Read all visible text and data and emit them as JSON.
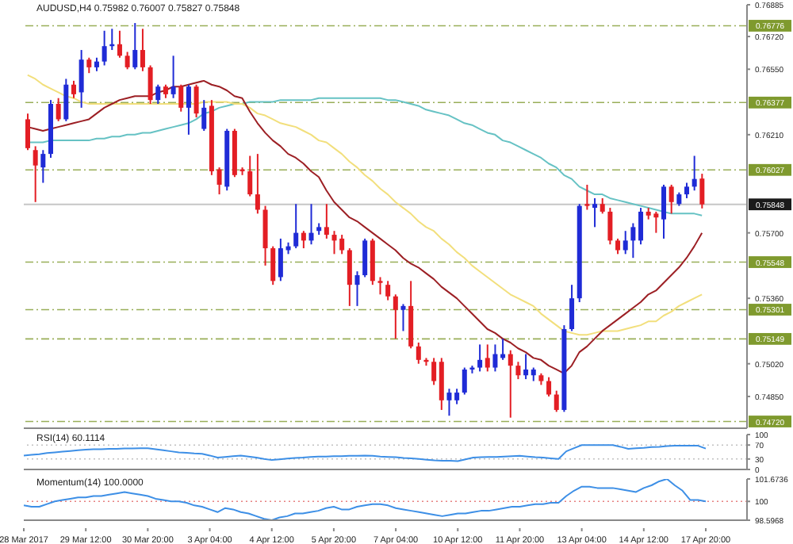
{
  "chart_data": [
    {
      "type": "candlestick",
      "title": "AUDUSD,H4 0.75982 0.76007 0.75827 0.75848",
      "tick_labels": "y",
      "categories": [
        null,
        null,
        null,
        null,
        null,
        null,
        null,
        null,
        null,
        null,
        null,
        null,
        null,
        null,
        null,
        null,
        null,
        null,
        null,
        null,
        null,
        null,
        null,
        null,
        null,
        null,
        null,
        null,
        null,
        null,
        null,
        null,
        null,
        null,
        null,
        null,
        null,
        null,
        null,
        null,
        null,
        null,
        null,
        null,
        null,
        null,
        null,
        null,
        null,
        null,
        null,
        null,
        null,
        null,
        null,
        null,
        null,
        null,
        null,
        null,
        null,
        null,
        null,
        null,
        null,
        null,
        null,
        null,
        null,
        null,
        null,
        null,
        null,
        null,
        null,
        null,
        null,
        null,
        null,
        null,
        null,
        null,
        null,
        null,
        null,
        null,
        null,
        null,
        null
      ],
      "ohlc": [
        [
          0.7629,
          0.7632,
          0.7613,
          0.7614
        ],
        [
          0.7613,
          0.7615,
          0.7586,
          0.7605
        ],
        [
          0.7604,
          0.7613,
          0.7596,
          0.7611
        ],
        [
          0.7611,
          0.7639,
          0.7609,
          0.7637
        ],
        [
          0.7637,
          0.764,
          0.7628,
          0.7629
        ],
        [
          0.7629,
          0.765,
          0.7628,
          0.7647
        ],
        [
          0.7647,
          0.7649,
          0.764,
          0.7642
        ],
        [
          0.7643,
          0.7665,
          0.7635,
          0.766
        ],
        [
          0.766,
          0.7661,
          0.7653,
          0.7656
        ],
        [
          0.7656,
          0.7661,
          0.7654,
          0.7659
        ],
        [
          0.7659,
          0.7675,
          0.7657,
          0.7667
        ],
        [
          0.7667,
          0.7676,
          0.7665,
          0.7668
        ],
        [
          0.7668,
          0.7675,
          0.7661,
          0.7662
        ],
        [
          0.7662,
          0.7664,
          0.7655,
          0.7656
        ],
        [
          0.7656,
          0.7679,
          0.7655,
          0.7665
        ],
        [
          0.7665,
          0.7676,
          0.7654,
          0.7656
        ],
        [
          0.7656,
          0.7657,
          0.7637,
          0.7639
        ],
        [
          0.7639,
          0.7647,
          0.7637,
          0.7646
        ],
        [
          0.7646,
          0.7647,
          0.764,
          0.7642
        ],
        [
          0.7642,
          0.7662,
          0.764,
          0.7646
        ],
        [
          0.7646,
          0.7647,
          0.7633,
          0.7635
        ],
        [
          0.7635,
          0.7647,
          0.7621,
          0.7646
        ],
        [
          0.7646,
          0.7647,
          0.763,
          0.7632
        ],
        [
          0.7624,
          0.7639,
          0.7623,
          0.7635
        ],
        [
          0.7636,
          0.7639,
          0.76,
          0.7602
        ],
        [
          0.7603,
          0.7604,
          0.759,
          0.7595
        ],
        [
          0.7594,
          0.7624,
          0.7592,
          0.7623
        ],
        [
          0.7623,
          0.7624,
          0.7599,
          0.76
        ],
        [
          0.7603,
          0.7604,
          0.76,
          0.7602
        ],
        [
          0.7602,
          0.761,
          0.7589,
          0.759
        ],
        [
          0.759,
          0.7611,
          0.758,
          0.7582
        ],
        [
          0.7582,
          0.7584,
          0.7553,
          0.7562
        ],
        [
          0.7562,
          0.7563,
          0.7543,
          0.7545
        ],
        [
          0.7547,
          0.7567,
          0.7545,
          0.7562
        ],
        [
          0.7561,
          0.7565,
          0.7559,
          0.7563
        ],
        [
          0.7563,
          0.7585,
          0.7562,
          0.757
        ],
        [
          0.757,
          0.7571,
          0.7562,
          0.7566
        ],
        [
          0.7566,
          0.7585,
          0.7564,
          0.757
        ],
        [
          0.7571,
          0.7575,
          0.7569,
          0.7573
        ],
        [
          0.7573,
          0.7585,
          0.7567,
          0.7569
        ],
        [
          0.7569,
          0.7571,
          0.7559,
          0.7566
        ],
        [
          0.7567,
          0.7569,
          0.7559,
          0.7561
        ],
        [
          0.7561,
          0.7562,
          0.7532,
          0.7543
        ],
        [
          0.7543,
          0.755,
          0.7532,
          0.7548
        ],
        [
          0.7548,
          0.7567,
          0.7547,
          0.7566
        ],
        [
          0.7566,
          0.7567,
          0.7543,
          0.7545
        ],
        [
          0.7545,
          0.7547,
          0.7538,
          0.7544
        ],
        [
          0.7543,
          0.7545,
          0.7535,
          0.7537
        ],
        [
          0.7537,
          0.7538,
          0.7515,
          0.753
        ],
        [
          0.753,
          0.7533,
          0.7519,
          0.7532
        ],
        [
          0.7532,
          0.7545,
          0.751,
          0.7511
        ],
        [
          0.7511,
          0.7513,
          0.7502,
          0.7504
        ],
        [
          0.7504,
          0.7505,
          0.7501,
          0.7503
        ],
        [
          0.7503,
          0.7505,
          0.7491,
          0.7493
        ],
        [
          0.7503,
          0.7505,
          0.7478,
          0.7483
        ],
        [
          0.7483,
          0.7489,
          0.7475,
          0.7487
        ],
        [
          0.7483,
          0.7489,
          0.7481,
          0.7487
        ],
        [
          0.7487,
          0.75,
          0.7486,
          0.7499
        ],
        [
          0.7499,
          0.7501,
          0.7497,
          0.75
        ],
        [
          0.75,
          0.7512,
          0.7498,
          0.7504
        ],
        [
          0.7505,
          0.7512,
          0.7498,
          0.75
        ],
        [
          0.75,
          0.7512,
          0.7498,
          0.7507
        ],
        [
          0.7505,
          0.7515,
          0.7504,
          0.7507
        ],
        [
          0.7507,
          0.7509,
          0.7474,
          0.7501
        ],
        [
          0.7501,
          0.7503,
          0.7494,
          0.7496
        ],
        [
          0.7496,
          0.7507,
          0.7494,
          0.7499
        ],
        [
          0.7496,
          0.75,
          0.7493,
          0.7499
        ],
        [
          0.7496,
          0.7497,
          0.7491,
          0.7493
        ],
        [
          0.7493,
          0.7495,
          0.7485,
          0.7486
        ],
        [
          0.7486,
          0.7488,
          0.7477,
          0.7478
        ],
        [
          0.7478,
          0.7522,
          0.7477,
          0.752
        ],
        [
          0.752,
          0.7543,
          0.7519,
          0.7536
        ],
        [
          0.7536,
          0.7585,
          0.7534,
          0.7584
        ],
        [
          0.7585,
          0.7595,
          0.7582,
          0.7584
        ],
        [
          0.7583,
          0.7588,
          0.7573,
          0.7585
        ],
        [
          0.7585,
          0.7588,
          0.758,
          0.7581
        ],
        [
          0.7581,
          0.7583,
          0.7564,
          0.7566
        ],
        [
          0.7566,
          0.7567,
          0.7559,
          0.7561
        ],
        [
          0.7561,
          0.7571,
          0.7559,
          0.7566
        ],
        [
          0.7566,
          0.7575,
          0.7557,
          0.7573
        ],
        [
          0.7566,
          0.7583,
          0.7564,
          0.7581
        ],
        [
          0.7581,
          0.7583,
          0.7577,
          0.7579
        ],
        [
          0.758,
          0.7581,
          0.757,
          0.7578
        ],
        [
          0.7577,
          0.7595,
          0.7567,
          0.7594
        ],
        [
          0.7594,
          0.7595,
          0.758,
          0.7586
        ],
        [
          0.7585,
          0.7591,
          0.7584,
          0.759
        ],
        [
          0.759,
          0.7596,
          0.7588,
          0.7594
        ],
        [
          0.7594,
          0.761,
          0.7592,
          0.7598
        ],
        [
          0.75982,
          0.76007,
          0.75827,
          0.75848
        ]
      ],
      "colors": [
        "#e31e24",
        "#e31e24",
        "#1f2bd6",
        "#1f2bd6",
        "#e31e24",
        "#1f2bd6",
        "#e31e24",
        "#1f2bd6",
        "#e31e24",
        "#1f2bd6",
        "#1f2bd6",
        "#1f2bd6",
        "#e31e24",
        "#e31e24",
        "#1f2bd6",
        "#e31e24",
        "#e31e24",
        "#1f2bd6",
        "#e31e24",
        "#1f2bd6",
        "#e31e24",
        "#1f2bd6",
        "#e31e24",
        "#1f2bd6",
        "#e31e24",
        "#e31e24",
        "#1f2bd6",
        "#e31e24",
        "#e31e24",
        "#e31e24",
        "#e31e24",
        "#e31e24",
        "#e31e24",
        "#1f2bd6",
        "#1f2bd6",
        "#1f2bd6",
        "#e31e24",
        "#1f2bd6",
        "#1f2bd6",
        "#e31e24",
        "#e31e24",
        "#e31e24",
        "#e31e24",
        "#1f2bd6",
        "#1f2bd6",
        "#e31e24",
        "#e31e24",
        "#e31e24",
        "#e31e24",
        "#1f2bd6",
        "#e31e24",
        "#e31e24",
        "#e31e24",
        "#e31e24",
        "#e31e24",
        "#1f2bd6",
        "#1f2bd6",
        "#1f2bd6",
        "#1f2bd6",
        "#1f2bd6",
        "#e31e24",
        "#1f2bd6",
        "#1f2bd6",
        "#e31e24",
        "#e31e24",
        "#1f2bd6",
        "#1f2bd6",
        "#e31e24",
        "#e31e24",
        "#e31e24",
        "#1f2bd6",
        "#1f2bd6",
        "#1f2bd6",
        "#e31e24",
        "#1f2bd6",
        "#e31e24",
        "#e31e24",
        "#e31e24",
        "#1f2bd6",
        "#1f2bd6",
        "#1f2bd6",
        "#e31e24",
        "#e31e24",
        "#1f2bd6",
        "#e31e24",
        "#1f2bd6",
        "#1f2bd6",
        "#1f2bd6",
        "#e31e24"
      ],
      "series": [
        {
          "type": "line",
          "color": "#66c2c4",
          "values": [
            0.7617,
            0.7617,
            0.7617,
            0.7618,
            0.7618,
            0.7618,
            0.7618,
            0.7618,
            0.7618,
            0.7619,
            0.7619,
            0.762,
            0.762,
            0.7621,
            0.7621,
            0.7622,
            0.7622,
            0.7623,
            0.7624,
            0.7625,
            0.7626,
            0.7627,
            0.7629,
            0.7632,
            0.7633,
            0.7635,
            0.7636,
            0.7637,
            0.7637,
            0.7638,
            0.7638,
            0.7638,
            0.7638,
            0.7639,
            0.7639,
            0.7639,
            0.7639,
            0.7639,
            0.764,
            0.764,
            0.764,
            0.764,
            0.764,
            0.764,
            0.764,
            0.764,
            0.764,
            0.7639,
            0.7639,
            0.7638,
            0.7637,
            0.7636,
            0.7634,
            0.7633,
            0.7632,
            0.7631,
            0.7629,
            0.7627,
            0.7626,
            0.7624,
            0.7622,
            0.7621,
            0.7618,
            0.7617,
            0.7615,
            0.7613,
            0.7611,
            0.7609,
            0.7606,
            0.7604,
            0.76,
            0.7598,
            0.7594,
            0.7592,
            0.759,
            0.759,
            0.7588,
            0.7587,
            0.7586,
            0.7585,
            0.7584,
            0.7583,
            0.7582,
            0.7581,
            0.758,
            0.758,
            0.758,
            0.758,
            0.7579
          ]
        },
        {
          "type": "line",
          "color": "#f2df7c",
          "values": [
            0.7652,
            0.765,
            0.7647,
            0.7645,
            0.7643,
            0.7641,
            0.764,
            0.7638,
            0.7637,
            0.7637,
            0.7637,
            0.7637,
            0.7637,
            0.7637,
            0.7637,
            0.7637,
            0.7637,
            0.7637,
            0.7637,
            0.7637,
            0.7637,
            0.7637,
            0.7637,
            0.7638,
            0.7638,
            0.7638,
            0.7638,
            0.7637,
            0.7637,
            0.7635,
            0.7632,
            0.7631,
            0.7629,
            0.7627,
            0.7626,
            0.7625,
            0.7623,
            0.7621,
            0.7618,
            0.7617,
            0.7614,
            0.7611,
            0.7607,
            0.7604,
            0.76,
            0.7597,
            0.7593,
            0.759,
            0.7586,
            0.7583,
            0.758,
            0.7576,
            0.7573,
            0.7571,
            0.7567,
            0.7564,
            0.756,
            0.7557,
            0.7553,
            0.755,
            0.7547,
            0.7544,
            0.7541,
            0.7538,
            0.7536,
            0.7534,
            0.7532,
            0.7528,
            0.7525,
            0.7522,
            0.7519,
            0.7518,
            0.7517,
            0.7517,
            0.7518,
            0.7519,
            0.7519,
            0.7519,
            0.752,
            0.7521,
            0.7522,
            0.7524,
            0.7524,
            0.7527,
            0.7529,
            0.7532,
            0.7534,
            0.7536,
            0.7538
          ]
        },
        {
          "type": "line",
          "color": "#9c1f24",
          "values": [
            0.7625,
            0.7624,
            0.7623,
            0.7624,
            0.7625,
            0.7626,
            0.7627,
            0.7628,
            0.7629,
            0.7632,
            0.7635,
            0.7637,
            0.7639,
            0.764,
            0.7641,
            0.7641,
            0.7641,
            0.7643,
            0.7644,
            0.7646,
            0.7646,
            0.7647,
            0.7648,
            0.7649,
            0.7647,
            0.7646,
            0.7644,
            0.7641,
            0.764,
            0.7633,
            0.7627,
            0.7622,
            0.7618,
            0.7615,
            0.7611,
            0.7609,
            0.7606,
            0.7602,
            0.7599,
            0.7592,
            0.7586,
            0.7582,
            0.7578,
            0.7576,
            0.7573,
            0.757,
            0.7567,
            0.7564,
            0.7561,
            0.7557,
            0.7554,
            0.7552,
            0.7549,
            0.7546,
            0.7542,
            0.7539,
            0.7536,
            0.7532,
            0.7528,
            0.7524,
            0.752,
            0.7518,
            0.7515,
            0.7513,
            0.751,
            0.7508,
            0.7505,
            0.7504,
            0.7501,
            0.7499,
            0.7497,
            0.7501,
            0.7508,
            0.7511,
            0.7515,
            0.7519,
            0.7522,
            0.7525,
            0.7528,
            0.7531,
            0.7534,
            0.7538,
            0.754,
            0.7544,
            0.7548,
            0.7552,
            0.7557,
            0.7563,
            0.757
          ]
        }
      ],
      "ylim": [
        0.74685,
        0.76885
      ],
      "yticks": [
        0.76885,
        {
          "value": 0.7672,
          "label": "0.76720"
        },
        {
          "value": 0.7655,
          "label": "0.76550"
        },
        {
          "value": 0.7621,
          "label": "0.76210"
        },
        {
          "value": 0.757,
          "label": "0.75700"
        },
        {
          "value": 0.7536,
          "label": "0.75360"
        },
        {
          "value": 0.7502,
          "label": "0.75020"
        },
        {
          "value": 0.7485,
          "label": "0.74850"
        }
      ],
      "ref_lines": [
        {
          "axis": "y",
          "value": 0.76776,
          "label": "0.76776",
          "color": "#7f9a2e",
          "line_style": "dashed"
        },
        {
          "axis": "y",
          "value": 0.76377,
          "label": "0.76377",
          "color": "#7f9a2e",
          "line_style": "dashed"
        },
        {
          "axis": "y",
          "value": 0.76027,
          "label": "0.76027",
          "color": "#7f9a2e",
          "line_style": "dashed"
        },
        {
          "axis": "y",
          "value": 0.75848,
          "label": "0.75848",
          "color": "#1a1a1a",
          "line_style": "solid"
        },
        {
          "axis": "y",
          "value": 0.75548,
          "label": "0.75548",
          "color": "#7f9a2e",
          "line_style": "dashed"
        },
        {
          "axis": "y",
          "value": 0.75301,
          "label": "0.75301",
          "color": "#7f9a2e",
          "line_style": "dashed"
        },
        {
          "axis": "y",
          "value": 0.75149,
          "label": "0.75149",
          "color": "#7f9a2e",
          "line_style": "dashed"
        },
        {
          "axis": "y",
          "value": 0.7472,
          "label": "0.74720",
          "color": "#7f9a2e",
          "line_style": "dashed"
        }
      ]
    },
    {
      "type": "line",
      "title": "RSI(14) 60.1114",
      "tick_labels": "y",
      "categories": [
        null,
        null,
        null,
        null,
        null,
        null,
        null,
        null,
        null,
        null,
        null,
        null,
        null,
        null,
        null,
        null,
        null,
        null,
        null,
        null,
        null,
        null,
        null,
        null,
        null,
        null,
        null,
        null,
        null,
        null,
        null,
        null,
        null,
        null,
        null,
        null,
        null,
        null,
        null,
        null,
        null,
        null,
        null,
        null,
        null,
        null,
        null,
        null,
        null,
        null,
        null,
        null,
        null,
        null,
        null,
        null,
        null,
        null,
        null,
        null,
        null,
        null,
        null,
        null,
        null,
        null,
        null,
        null,
        null,
        null,
        null,
        null,
        null,
        null,
        null,
        null,
        null,
        null,
        null,
        null,
        null,
        null,
        null,
        null,
        null,
        null,
        null,
        null,
        null
      ],
      "series": [
        {
          "color": "#3d8fe6",
          "values": [
            40,
            42,
            44,
            47,
            49,
            51,
            53,
            55,
            57,
            58,
            58,
            59,
            59,
            60,
            60,
            61,
            61,
            58,
            55,
            52,
            49,
            48,
            46,
            45,
            40,
            34,
            36,
            38,
            40,
            37,
            34,
            30,
            27,
            29,
            31,
            33,
            34,
            36,
            37,
            37,
            38,
            38,
            39,
            39,
            40,
            39,
            37,
            36,
            35,
            33,
            32,
            30,
            28,
            26,
            25,
            25,
            24,
            29,
            34,
            35,
            36,
            36,
            37,
            38,
            39,
            37,
            35,
            34,
            32,
            30,
            52,
            61,
            70,
            70,
            70,
            70,
            70,
            65,
            59,
            61,
            62,
            64,
            65,
            67,
            68,
            68,
            68,
            68,
            60
          ]
        }
      ],
      "ylim": [
        0,
        100
      ],
      "yticks": [
        100,
        70,
        30,
        0
      ],
      "ref_lines": [
        {
          "axis": "y",
          "value": 70,
          "color": "#b0b0b0",
          "line_style": "dotted"
        },
        {
          "axis": "y",
          "value": 30,
          "color": "#b0b0b0",
          "line_style": "dotted"
        }
      ]
    },
    {
      "type": "line",
      "title": "Momentum(14) 100.0000",
      "categories": [
        "28 Mar 2017",
        null,
        null,
        null,
        null,
        null,
        null,
        null,
        "29 Mar 12:00",
        null,
        null,
        null,
        null,
        null,
        null,
        null,
        "30 Mar 20:00",
        null,
        null,
        null,
        null,
        null,
        null,
        null,
        "3 Apr 04:00",
        null,
        null,
        null,
        null,
        null,
        null,
        null,
        "4 Apr 12:00",
        null,
        null,
        null,
        null,
        null,
        null,
        null,
        "5 Apr 20:00",
        null,
        null,
        null,
        null,
        null,
        null,
        null,
        "7 Apr 04:00",
        null,
        null,
        null,
        null,
        null,
        null,
        null,
        "10 Apr 12:00",
        null,
        null,
        null,
        null,
        null,
        null,
        null,
        "11 Apr 20:00",
        null,
        null,
        null,
        null,
        null,
        null,
        null,
        "13 Apr 04:00",
        null,
        null,
        null,
        null,
        null,
        null,
        null,
        "14 Apr 12:00",
        null,
        null,
        null,
        null,
        null,
        null,
        null,
        "17 Apr 20:00"
      ],
      "series": [
        {
          "color": "#3d8fe6",
          "values": [
            99.7,
            99.6,
            99.6,
            99.8,
            100,
            100.1,
            100.2,
            100.3,
            100.3,
            100.4,
            100.4,
            100.5,
            100.6,
            100.7,
            100.6,
            100.5,
            100.4,
            100.2,
            100.1,
            100,
            100,
            99.9,
            99.7,
            99.6,
            99.4,
            99.2,
            99.5,
            99.4,
            99.2,
            99.1,
            98.9,
            98.7,
            98.6,
            98.8,
            98.9,
            99.1,
            99.1,
            99.2,
            99.3,
            99.5,
            99.6,
            99.4,
            99.4,
            99.6,
            99.7,
            99.8,
            99.8,
            99.7,
            99.5,
            99.4,
            99.3,
            99.2,
            99.1,
            99,
            98.9,
            99,
            99.1,
            99.1,
            99.2,
            99.3,
            99.3,
            99.4,
            99.5,
            99.6,
            99.6,
            99.7,
            99.8,
            99.8,
            99.9,
            99.9,
            100.4,
            100.8,
            101.1,
            101.1,
            101,
            101,
            101,
            100.9,
            100.8,
            100.7,
            101,
            101.2,
            101.5,
            101.6736,
            101.2,
            100.8,
            100.1,
            100.1,
            100
          ]
        }
      ],
      "ylim": [
        98.5968,
        101.6736
      ],
      "yticks": [
        101.6736,
        100,
        98.5968
      ],
      "ref_lines": [
        {
          "axis": "y",
          "value": 100,
          "color": "#e06060",
          "line_style": "dotted"
        }
      ]
    }
  ]
}
